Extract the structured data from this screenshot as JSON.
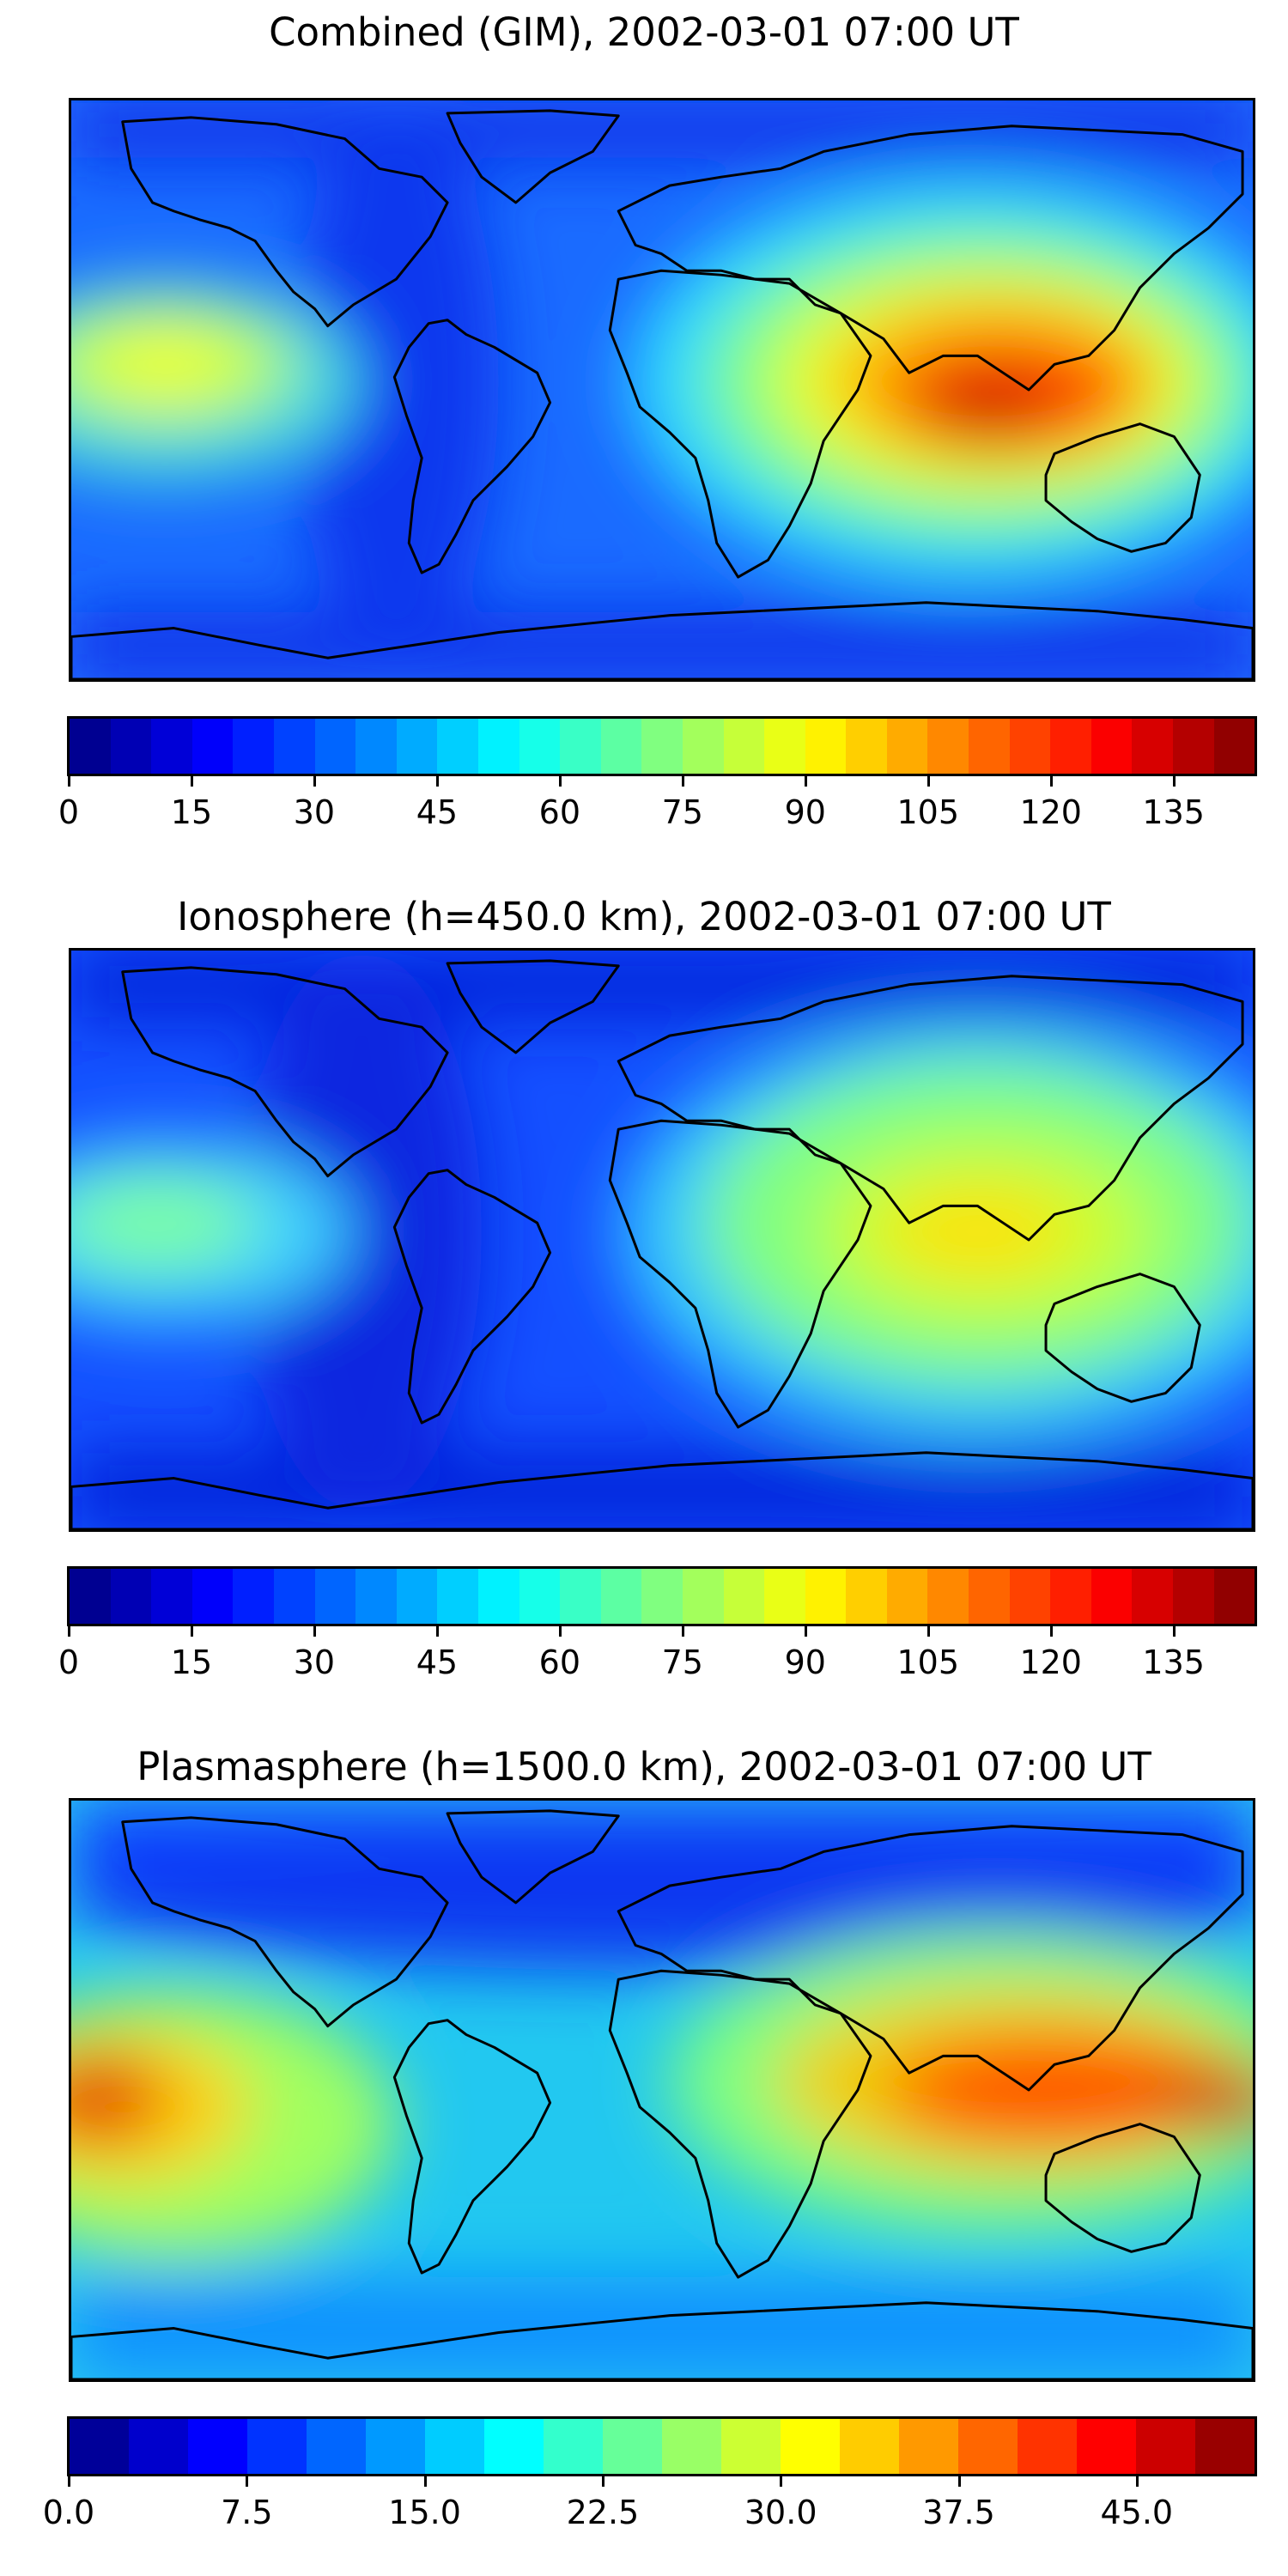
{
  "panels": [
    {
      "title": "Combined (GIM), 2002-03-01 07:00 UT",
      "colorbar": {
        "min": 0,
        "max": 145,
        "levels": 29,
        "ticks": [
          "0",
          "15",
          "30",
          "45",
          "60",
          "75",
          "90",
          "105",
          "120",
          "135"
        ],
        "tick_values": [
          0,
          15,
          30,
          45,
          60,
          75,
          90,
          105,
          120,
          135
        ]
      },
      "map_layer": "combined"
    },
    {
      "title": "Ionosphere  (h=450.0 km), 2002-03-01 07:00 UT",
      "colorbar": {
        "min": 0,
        "max": 145,
        "levels": 29,
        "ticks": [
          "0",
          "15",
          "30",
          "45",
          "60",
          "75",
          "90",
          "105",
          "120",
          "135"
        ],
        "tick_values": [
          0,
          15,
          30,
          45,
          60,
          75,
          90,
          105,
          120,
          135
        ]
      },
      "map_layer": "ionosphere"
    },
    {
      "title": "Plasmasphere (h=1500.0 km), 2002-03-01 07:00 UT",
      "colorbar": {
        "min": 0,
        "max": 50,
        "levels": 20,
        "ticks": [
          "0.0",
          "7.5",
          "15.0",
          "22.5",
          "30.0",
          "37.5",
          "45.0"
        ],
        "tick_values": [
          0,
          7.5,
          15,
          22.5,
          30,
          37.5,
          45
        ]
      },
      "map_layer": "plasmasphere"
    }
  ],
  "colormap": "jet",
  "colors": {
    "coastline": "#000000",
    "frame": "#000000"
  }
}
